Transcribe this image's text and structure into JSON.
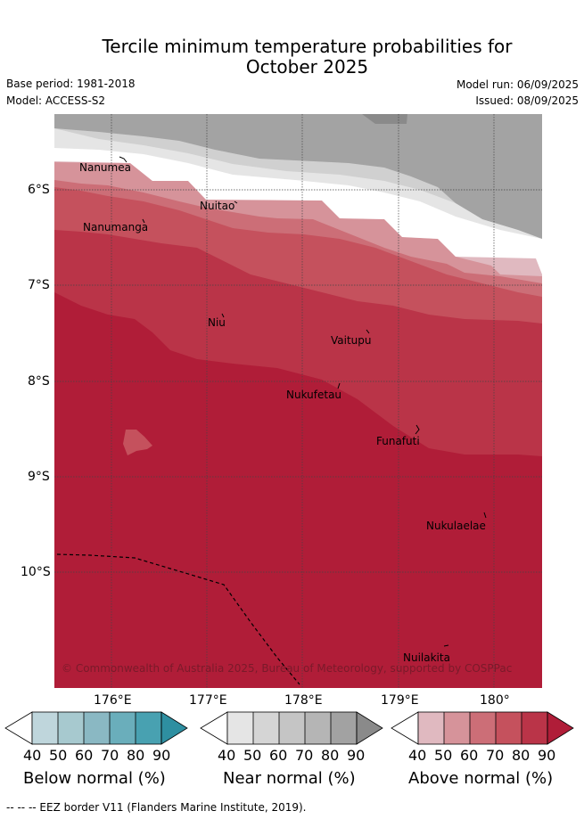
{
  "title_line1": "Tercile minimum temperature probabilities for",
  "title_line2": "October 2025",
  "meta": {
    "base_period": "Base period: 1981-2018",
    "model": "Model: ACCESS-S2",
    "model_run": "Model run: 06/09/2025",
    "issued": "Issued: 08/09/2025"
  },
  "map": {
    "lat_ticks": [
      "6°S",
      "7°S",
      "8°S",
      "9°S",
      "10°S"
    ],
    "lon_ticks": [
      "176°E",
      "177°E",
      "178°E",
      "179°E",
      "180°"
    ],
    "places": [
      "Nanumea",
      "Nuitao",
      "Nanumanga",
      "Niu",
      "Vaitupu",
      "Nukufetau",
      "Funafuti",
      "Nukulaelae",
      "Nuilakita"
    ],
    "credit": "© Commonwealth of Australia 2025, Bureau of Meteorology, supported by COSPPac"
  },
  "colorbars": [
    {
      "label": "Below normal (%)",
      "ticks": [
        "40",
        "50",
        "60",
        "70",
        "80",
        "90"
      ],
      "colors": [
        "#ffffff",
        "#bfd6dc",
        "#a7c9cf",
        "#8ab8c3",
        "#6aaebb",
        "#48a1b1",
        "#2e8fa1"
      ]
    },
    {
      "label": "Near normal (%)",
      "ticks": [
        "40",
        "50",
        "60",
        "70",
        "80",
        "90"
      ],
      "colors": [
        "#ffffff",
        "#e5e5e5",
        "#d5d5d5",
        "#c5c5c5",
        "#b5b5b5",
        "#a2a2a2",
        "#8a8a8a"
      ]
    },
    {
      "label": "Above normal (%)",
      "ticks": [
        "40",
        "50",
        "60",
        "70",
        "80",
        "90"
      ],
      "colors": [
        "#ffffff",
        "#e0b9c0",
        "#d6939a",
        "#cc6e77",
        "#c5515d",
        "#ba3448",
        "#b01d38"
      ]
    }
  ],
  "footer": "--  --  -- EEZ border V11 (Flanders Marine Institute, 2019)."
}
